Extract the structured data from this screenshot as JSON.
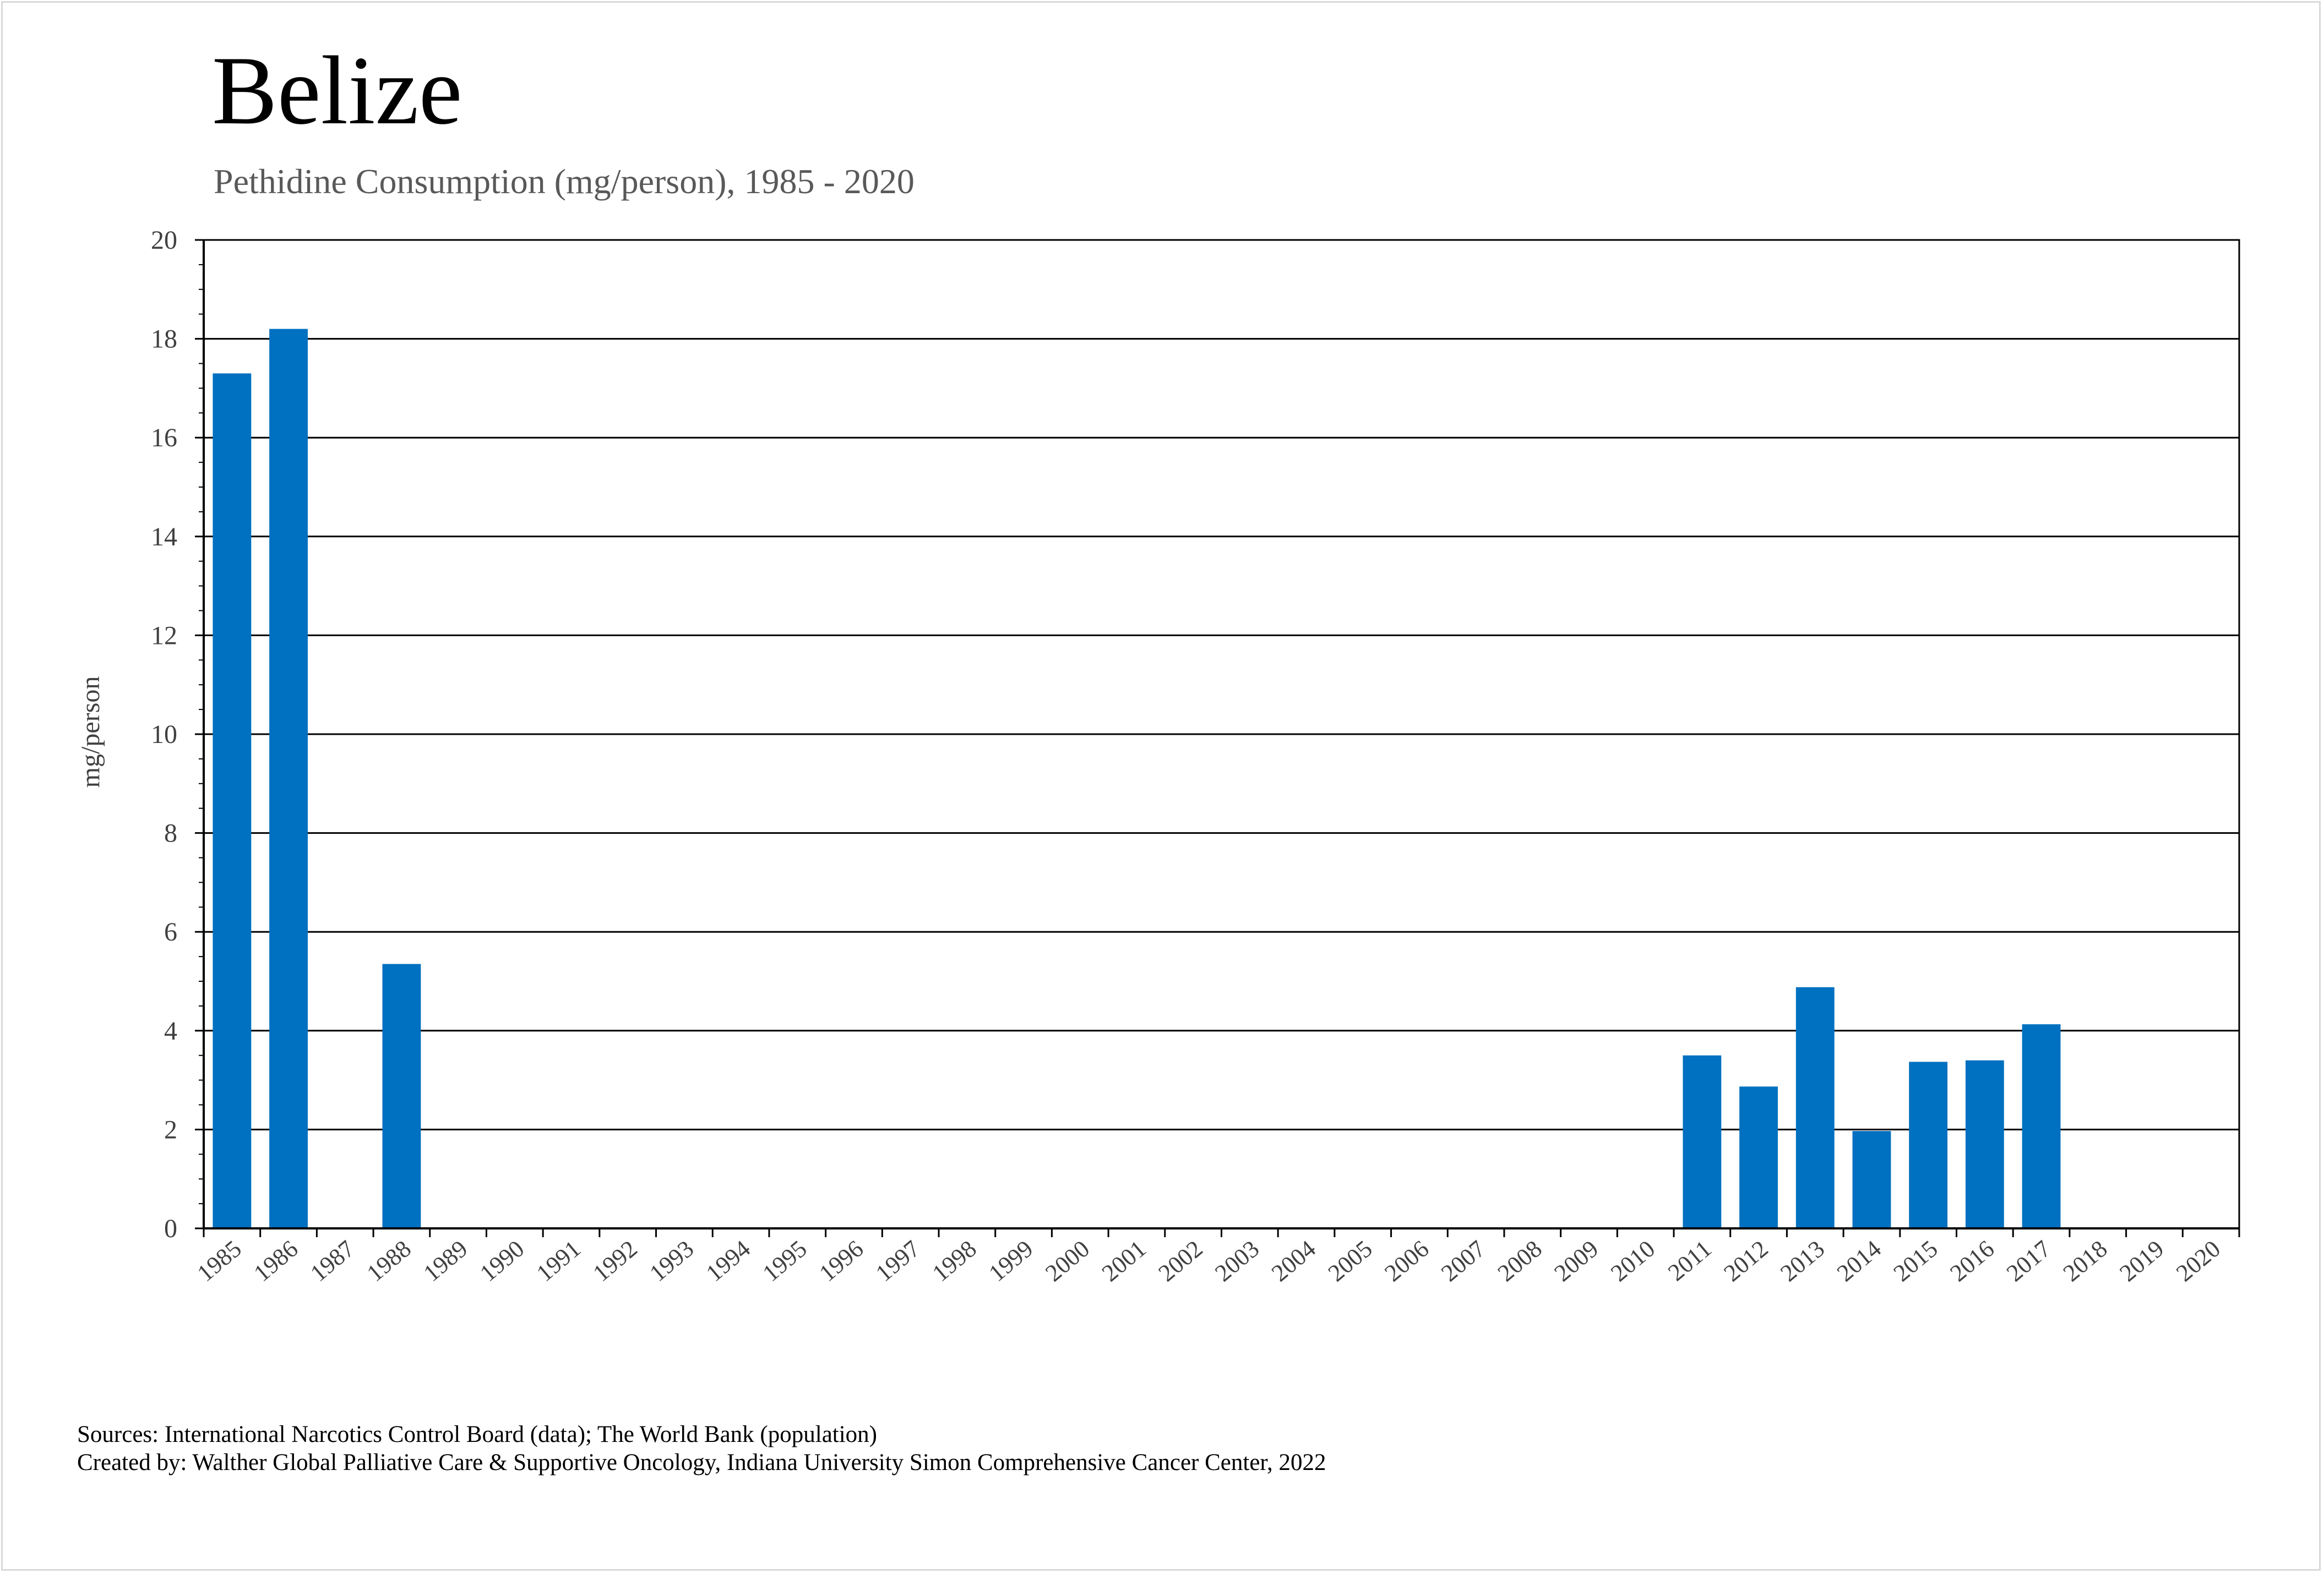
{
  "page": {
    "title": "Belize",
    "subtitle": "Pethidine Consumption (mg/person), 1985 - 2020",
    "sources_line": "Sources: International Narcotics Control Board (data); The World Bank (population)",
    "created_line": "Created by: Walther Global Palliative Care & Supportive Oncology, Indiana University Simon Comprehensive Cancer Center, 2022"
  },
  "chart_data": {
    "type": "bar",
    "title": "Belize",
    "subtitle": "Pethidine Consumption (mg/person), 1985 - 2020",
    "xlabel": "",
    "ylabel": "mg/person",
    "ylim": [
      0,
      20
    ],
    "yticks": [
      0,
      2,
      4,
      6,
      8,
      10,
      12,
      14,
      16,
      18,
      20
    ],
    "grid": true,
    "bar_color": "#0070C0",
    "categories": [
      "1985",
      "1986",
      "1987",
      "1988",
      "1989",
      "1990",
      "1991",
      "1992",
      "1993",
      "1994",
      "1995",
      "1996",
      "1997",
      "1998",
      "1999",
      "2000",
      "2001",
      "2002",
      "2003",
      "2004",
      "2005",
      "2006",
      "2007",
      "2008",
      "2009",
      "2010",
      "2011",
      "2012",
      "2013",
      "2014",
      "2015",
      "2016",
      "2017",
      "2018",
      "2019",
      "2020"
    ],
    "values": [
      17.3,
      18.2,
      0,
      5.35,
      0,
      0,
      0,
      0,
      0,
      0,
      0,
      0,
      0,
      0,
      0,
      0,
      0,
      0,
      0,
      0,
      0,
      0,
      0,
      0,
      0,
      0,
      3.5,
      2.87,
      4.88,
      1.97,
      3.37,
      3.4,
      4.13,
      0,
      0,
      0
    ]
  }
}
